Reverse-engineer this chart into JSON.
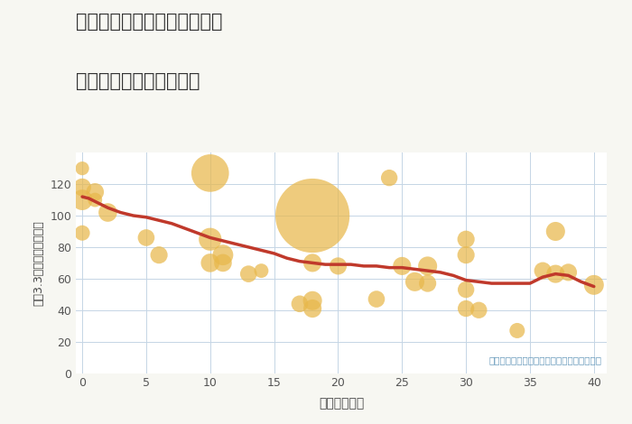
{
  "title_line1": "福岡県福岡市西区大町団地の",
  "title_line2": "築年数別中古戸建て価格",
  "xlabel": "築年数（年）",
  "ylabel": "坪（3.3㎡）単価（万円）",
  "xlim": [
    -0.5,
    41
  ],
  "ylim": [
    0,
    140
  ],
  "xticks": [
    0,
    5,
    10,
    15,
    20,
    25,
    30,
    35,
    40
  ],
  "yticks": [
    0,
    20,
    40,
    60,
    80,
    100,
    120
  ],
  "background_color": "#f7f7f2",
  "grid_color": "#c5d5e5",
  "bubble_color": "#e8b84b",
  "bubble_alpha": 0.72,
  "line_color": "#c0392b",
  "line_width": 2.5,
  "annotation": "円の大きさは、取引のあった物件面積を示す",
  "annotation_color": "#6699bb",
  "scatter_x": [
    0,
    0,
    0,
    0,
    1,
    1,
    2,
    5,
    6,
    10,
    10,
    10,
    11,
    11,
    13,
    14,
    17,
    18,
    18,
    18,
    18,
    20,
    23,
    24,
    25,
    26,
    27,
    27,
    30,
    30,
    30,
    30,
    31,
    34,
    36,
    37,
    37,
    38,
    40
  ],
  "scatter_y": [
    130,
    118,
    110,
    89,
    115,
    110,
    102,
    86,
    75,
    127,
    85,
    70,
    75,
    70,
    63,
    65,
    44,
    100,
    70,
    46,
    41,
    68,
    47,
    124,
    68,
    58,
    68,
    57,
    41,
    75,
    53,
    85,
    40,
    27,
    65,
    90,
    63,
    64,
    56
  ],
  "scatter_size": [
    120,
    200,
    270,
    150,
    200,
    130,
    220,
    180,
    190,
    900,
    330,
    220,
    270,
    200,
    180,
    130,
    180,
    3500,
    210,
    230,
    210,
    190,
    180,
    175,
    210,
    230,
    230,
    190,
    175,
    190,
    175,
    190,
    175,
    150,
    190,
    230,
    210,
    190,
    250
  ],
  "trend_x": [
    0,
    0.5,
    1,
    1.5,
    2,
    3,
    4,
    5,
    6,
    7,
    8,
    9,
    10,
    11,
    12,
    13,
    14,
    15,
    16,
    17,
    18,
    19,
    20,
    21,
    22,
    23,
    24,
    25,
    26,
    27,
    28,
    29,
    30,
    31,
    32,
    33,
    34,
    35,
    36,
    37,
    38,
    39,
    40
  ],
  "trend_y": [
    112,
    111,
    109,
    107,
    105,
    102,
    100,
    99,
    97,
    95,
    92,
    89,
    86,
    84,
    82,
    80,
    78,
    76,
    73,
    71,
    70,
    69,
    69,
    69,
    68,
    68,
    67,
    67,
    66,
    65,
    64,
    62,
    59,
    58,
    57,
    57,
    57,
    57,
    61,
    63,
    62,
    58,
    55
  ]
}
